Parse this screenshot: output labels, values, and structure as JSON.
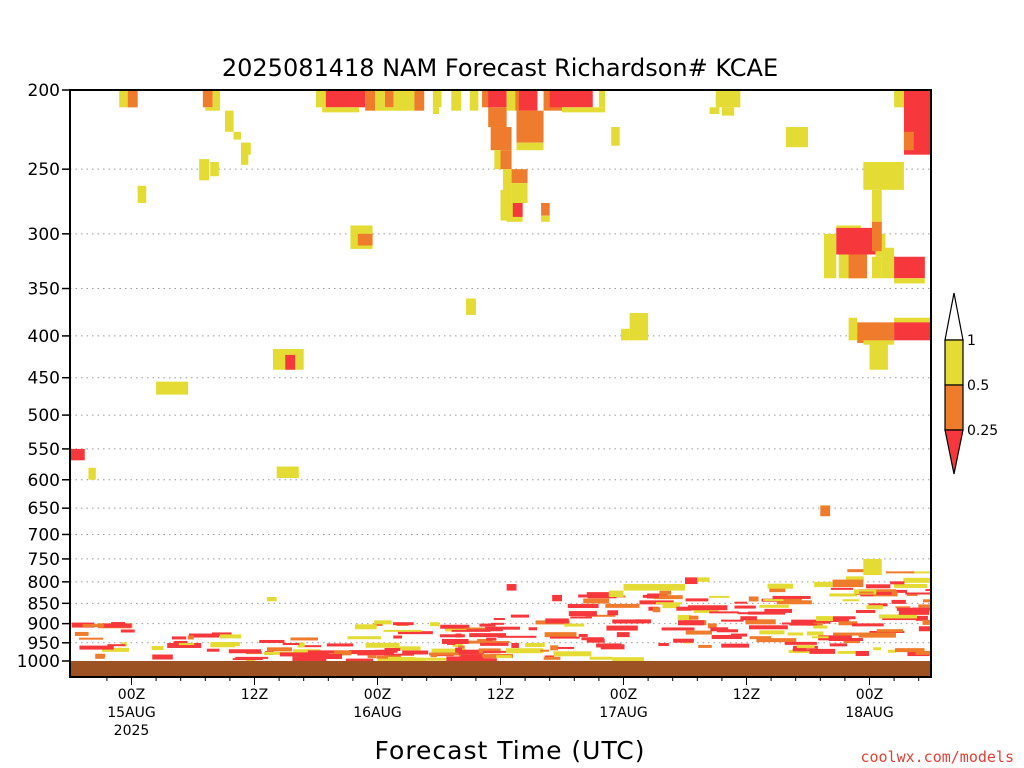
{
  "colors": {
    "yellow": "#e4dc34",
    "orange": "#ee7c2c",
    "red": "#f6383c",
    "ground": "#9c5223",
    "grid": "#9a9a9a",
    "credit": "#e0413a"
  },
  "chart_data": {
    "type": "heatmap",
    "title": "2025081418 NAM Forecast Richardson# KCAE",
    "xlabel": "Forecast Time (UTC)",
    "ylabel": "",
    "credit": "coolwx.com/models",
    "y_axis": {
      "scale": "log-pressure",
      "inverted": true,
      "range_hPa": [
        1000,
        200
      ]
    },
    "y_ticks": [
      200,
      250,
      300,
      350,
      400,
      450,
      500,
      550,
      600,
      650,
      700,
      750,
      800,
      850,
      900,
      950,
      1000
    ],
    "x_range_hours": [
      -5,
      65
    ],
    "x_ticks": [
      {
        "hour": 0,
        "lines": [
          "00Z",
          "15AUG",
          "2025"
        ]
      },
      {
        "hour": 10,
        "lines": [
          "12Z"
        ]
      },
      {
        "hour": 20,
        "lines": [
          "00Z",
          "16AUG"
        ]
      },
      {
        "hour": 30,
        "lines": [
          "12Z"
        ]
      },
      {
        "hour": 40,
        "lines": [
          "00Z",
          "17AUG"
        ]
      },
      {
        "hour": 50,
        "lines": [
          "12Z"
        ]
      },
      {
        "hour": 60,
        "lines": [
          "00Z",
          "18AUG"
        ]
      }
    ],
    "legend": {
      "labels": [
        "1",
        "0.5",
        "0.25"
      ],
      "bins": [
        {
          "from": 0.5,
          "to": 1,
          "color": "yellow"
        },
        {
          "from": 0.25,
          "to": 0.5,
          "color": "orange"
        },
        {
          "from": 0,
          "to": 0.25,
          "color": "red"
        }
      ]
    },
    "upper_cells": [
      [
        "yellow",
        -1.0,
        0.5,
        200,
        210
      ],
      [
        "orange",
        -0.3,
        0.5,
        200,
        210
      ],
      [
        "orange",
        5.8,
        6.6,
        200,
        210
      ],
      [
        "yellow",
        6.6,
        7.2,
        200,
        210
      ],
      [
        "yellow",
        6.0,
        7.2,
        210,
        212
      ],
      [
        "yellow",
        7.6,
        8.3,
        212,
        225
      ],
      [
        "yellow",
        8.3,
        8.9,
        225,
        230
      ],
      [
        "yellow",
        8.9,
        9.5,
        232,
        247
      ],
      [
        "yellow",
        9.0,
        9.7,
        232,
        240
      ],
      [
        "yellow",
        5.5,
        6.3,
        243,
        258
      ],
      [
        "yellow",
        6.4,
        7.1,
        245,
        255
      ],
      [
        "yellow",
        0.5,
        1.2,
        262,
        275
      ],
      [
        "yellow",
        11.5,
        14.0,
        415,
        440
      ],
      [
        "red",
        12.5,
        13.3,
        422,
        440
      ],
      [
        "yellow",
        2.0,
        4.6,
        455,
        472
      ],
      [
        "yellow",
        11.8,
        13.6,
        578,
        597
      ],
      [
        "red",
        -5.0,
        -3.8,
        550,
        568
      ],
      [
        "yellow",
        -3.5,
        -2.9,
        580,
        600
      ],
      [
        "yellow",
        15.0,
        17.3,
        200,
        210
      ],
      [
        "red",
        15.8,
        19.0,
        200,
        210
      ],
      [
        "orange",
        19.0,
        19.8,
        200,
        212
      ],
      [
        "yellow",
        19.8,
        20.6,
        200,
        212
      ],
      [
        "orange",
        20.6,
        21.3,
        200,
        210
      ],
      [
        "yellow",
        21.3,
        23.0,
        200,
        212
      ],
      [
        "orange",
        23.0,
        23.8,
        200,
        212
      ],
      [
        "yellow",
        24.5,
        25.2,
        200,
        210
      ],
      [
        "yellow",
        15.5,
        18.5,
        210,
        213
      ],
      [
        "yellow",
        19.8,
        22.5,
        210,
        212
      ],
      [
        "yellow",
        24.5,
        25.0,
        210,
        214
      ],
      [
        "yellow",
        17.8,
        19.6,
        293,
        313
      ],
      [
        "orange",
        18.4,
        19.6,
        300,
        310
      ],
      [
        "yellow",
        27.2,
        28.0,
        360,
        377
      ],
      [
        "yellow",
        26.0,
        26.8,
        200,
        212
      ],
      [
        "yellow",
        27.5,
        28.2,
        200,
        212
      ],
      [
        "orange",
        28.5,
        29.2,
        200,
        210
      ],
      [
        "red",
        29.0,
        30.5,
        200,
        210
      ],
      [
        "orange",
        29.0,
        30.5,
        210,
        222
      ],
      [
        "yellow",
        30.5,
        31.2,
        200,
        212
      ],
      [
        "orange",
        31.2,
        33.0,
        200,
        212
      ],
      [
        "red",
        31.5,
        33.0,
        200,
        212
      ],
      [
        "orange",
        31.3,
        33.5,
        212,
        232
      ],
      [
        "orange",
        29.2,
        30.9,
        222,
        237
      ],
      [
        "yellow",
        31.3,
        33.5,
        232,
        237
      ],
      [
        "yellow",
        29.5,
        30.9,
        237,
        250
      ],
      [
        "orange",
        30.0,
        30.9,
        237,
        250
      ],
      [
        "yellow",
        30.2,
        30.9,
        250,
        275
      ],
      [
        "orange",
        30.9,
        32.2,
        250,
        260
      ],
      [
        "yellow",
        30.9,
        32.2,
        260,
        275
      ],
      [
        "yellow",
        30.5,
        31.8,
        275,
        290
      ],
      [
        "red",
        31.0,
        31.8,
        275,
        286
      ],
      [
        "yellow",
        30.0,
        30.8,
        265,
        289
      ],
      [
        "orange",
        33.3,
        34.0,
        275,
        285
      ],
      [
        "yellow",
        33.3,
        34.0,
        285,
        290
      ],
      [
        "orange",
        33.5,
        35.0,
        200,
        212
      ],
      [
        "red",
        34.0,
        37.5,
        200,
        210
      ],
      [
        "yellow",
        35.0,
        38.5,
        210,
        213
      ],
      [
        "yellow",
        38.0,
        38.5,
        200,
        210
      ],
      [
        "yellow",
        39.0,
        39.7,
        222,
        234
      ],
      [
        "yellow",
        40.5,
        42.0,
        375,
        405
      ],
      [
        "yellow",
        39.8,
        40.5,
        392,
        405
      ],
      [
        "yellow",
        47.5,
        49.5,
        200,
        210
      ],
      [
        "yellow",
        47.0,
        47.8,
        210,
        214
      ],
      [
        "yellow",
        48.0,
        49.0,
        210,
        215
      ],
      [
        "yellow",
        53.2,
        55.0,
        222,
        235
      ],
      [
        "orange",
        56.0,
        56.8,
        645,
        665
      ],
      [
        "yellow",
        56.3,
        57.3,
        300,
        340
      ],
      [
        "yellow",
        57.3,
        59.3,
        293,
        302
      ],
      [
        "red",
        57.3,
        60.5,
        295,
        318
      ],
      [
        "yellow",
        60.5,
        61.3,
        300,
        320
      ],
      [
        "yellow",
        57.5,
        59.8,
        318,
        340
      ],
      [
        "orange",
        58.3,
        59.8,
        318,
        340
      ],
      [
        "yellow",
        60.2,
        61.0,
        320,
        340
      ],
      [
        "yellow",
        59.5,
        62.8,
        245,
        265
      ],
      [
        "yellow",
        60.2,
        61.0,
        265,
        292
      ],
      [
        "orange",
        60.2,
        61.0,
        290,
        315
      ],
      [
        "yellow",
        61.0,
        62.0,
        312,
        340
      ],
      [
        "red",
        62.0,
        64.5,
        320,
        340
      ],
      [
        "yellow",
        62.0,
        64.5,
        340,
        345
      ],
      [
        "yellow",
        62.0,
        62.8,
        200,
        210
      ],
      [
        "red",
        62.8,
        65.0,
        200,
        240
      ],
      [
        "orange",
        62.8,
        63.6,
        225,
        237
      ],
      [
        "yellow",
        58.3,
        59.0,
        380,
        405
      ],
      [
        "orange",
        59.0,
        62.0,
        385,
        408
      ],
      [
        "yellow",
        62.0,
        65.0,
        380,
        395
      ],
      [
        "red",
        62.0,
        65.0,
        385,
        405
      ],
      [
        "yellow",
        60.0,
        61.5,
        408,
        440
      ],
      [
        "yellow",
        59.5,
        62.0,
        405,
        410
      ]
    ],
    "boundary_bands": [
      [
        -5,
        3,
        895,
        990,
        17,
        0.5
      ],
      [
        3,
        12,
        920,
        995,
        14,
        0.4
      ],
      [
        12,
        18,
        930,
        995,
        14,
        0.45
      ],
      [
        18,
        25,
        880,
        995,
        18,
        0.55
      ],
      [
        25,
        28,
        900,
        990,
        14,
        0.45
      ],
      [
        28,
        35,
        875,
        995,
        18,
        0.55
      ],
      [
        35,
        45,
        820,
        990,
        28,
        0.5
      ],
      [
        45,
        51,
        830,
        960,
        16,
        0.45
      ],
      [
        51,
        58,
        800,
        995,
        22,
        0.55
      ],
      [
        58,
        65,
        770,
        990,
        26,
        0.6
      ]
    ],
    "boundary_notes": [
      [
        "yellow",
        11.0,
        11.8,
        835,
        845
      ],
      [
        "red",
        30.5,
        31.3,
        805,
        820
      ],
      [
        "red",
        34.2,
        35.0,
        830,
        845
      ],
      [
        "yellow",
        38.8,
        40.0,
        820,
        835
      ],
      [
        "yellow",
        40.0,
        45.0,
        805,
        820
      ],
      [
        "red",
        45.0,
        46.0,
        790,
        805
      ],
      [
        "yellow",
        46.0,
        47.0,
        790,
        800
      ],
      [
        "yellow",
        59.5,
        61.0,
        750,
        785
      ],
      [
        "orange",
        57.0,
        59.5,
        795,
        812
      ],
      [
        "yellow",
        55.5,
        57.0,
        800,
        812
      ]
    ]
  }
}
